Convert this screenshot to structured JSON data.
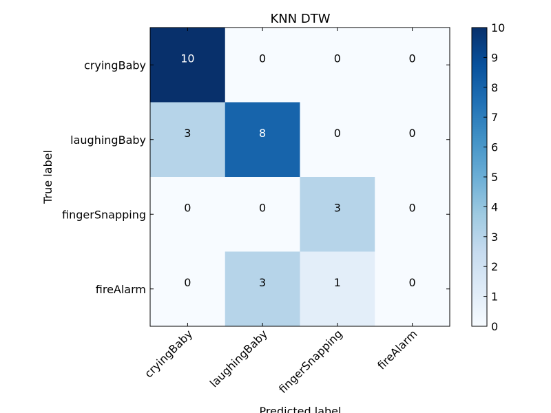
{
  "chart_data": {
    "type": "heatmap",
    "title": "KNN DTW",
    "xlabel": "Predicted label",
    "ylabel": "True label",
    "x_categories": [
      "cryingBaby",
      "laughingBaby",
      "fingerSnapping",
      "fireAlarm"
    ],
    "y_categories": [
      "cryingBaby",
      "laughingBaby",
      "fingerSnapping",
      "fireAlarm"
    ],
    "values": [
      [
        10,
        0,
        0,
        0
      ],
      [
        3,
        8,
        0,
        0
      ],
      [
        0,
        0,
        3,
        0
      ],
      [
        0,
        3,
        1,
        0
      ]
    ],
    "colormap": "Blues",
    "vmin": 0,
    "vmax": 10,
    "colorbar_ticks": [
      "0",
      "1",
      "2",
      "3",
      "4",
      "5",
      "6",
      "7",
      "8",
      "9",
      "10"
    ],
    "text_colors": {
      "dark": "#ffffff",
      "light": "#000000"
    }
  }
}
